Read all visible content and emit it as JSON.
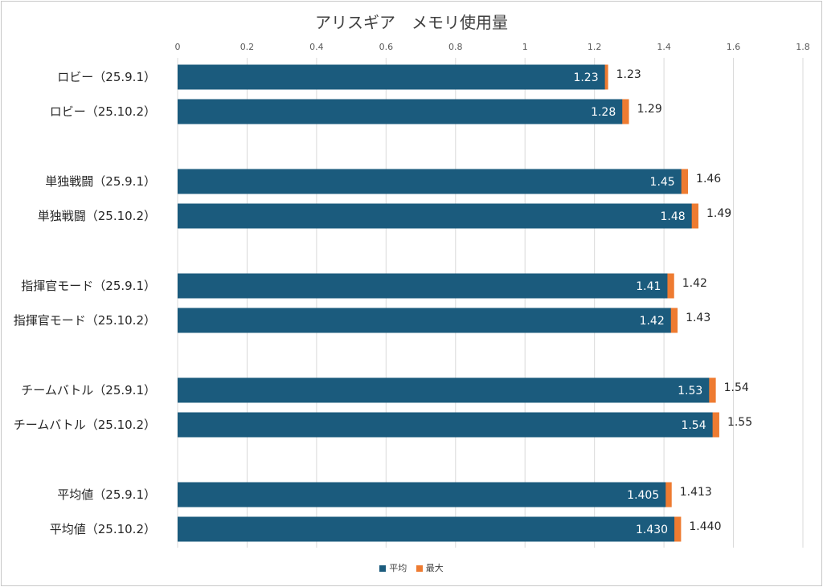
{
  "chart_data": {
    "type": "bar",
    "orientation": "horizontal",
    "title": "アリスギア　メモリ使用量",
    "xlim": [
      0,
      1.8
    ],
    "xticks": [
      "0",
      "0.2",
      "0.4",
      "0.6",
      "0.8",
      "1",
      "1.2",
      "1.4",
      "1.6",
      "1.8"
    ],
    "grid": true,
    "legend_position": "bottom",
    "categories": [
      "ロビー（25.9.1）",
      "ロビー（25.10.2）",
      "単独戦闘（25.9.1）",
      "単独戦闘（25.10.2）",
      "指揮官モード（25.9.1）",
      "指揮官モード（25.10.2）",
      "チームバトル（25.9.1）",
      "チームバトル（25.10.2）",
      "平均値（25.9.1）",
      "平均値（25.10.2）"
    ],
    "series": [
      {
        "name": "平均",
        "color": "#1b5b7d",
        "values": [
          1.23,
          1.28,
          1.45,
          1.48,
          1.41,
          1.42,
          1.53,
          1.54,
          1.405,
          1.43
        ],
        "labels": [
          "1.23",
          "1.28",
          "1.45",
          "1.48",
          "1.41",
          "1.42",
          "1.53",
          "1.54",
          "1.405",
          "1.430"
        ]
      },
      {
        "name": "最大",
        "color": "#ee7b31",
        "values": [
          1.23,
          1.29,
          1.46,
          1.49,
          1.42,
          1.43,
          1.54,
          1.55,
          1.413,
          1.44
        ],
        "labels": [
          "1.23",
          "1.29",
          "1.46",
          "1.49",
          "1.42",
          "1.43",
          "1.54",
          "1.55",
          "1.413",
          "1.440"
        ]
      }
    ]
  }
}
